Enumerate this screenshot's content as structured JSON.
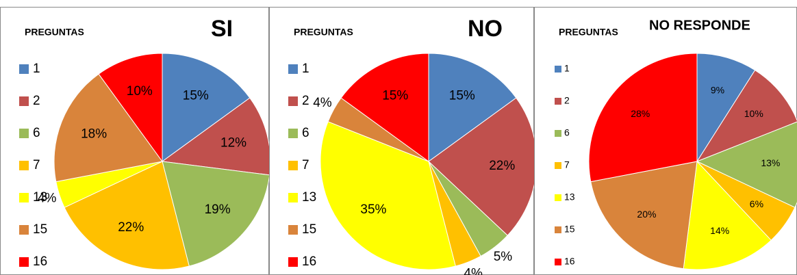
{
  "chart_data": [
    {
      "type": "pie",
      "title": "SI",
      "legend_title": "PREGUNTAS",
      "categories": [
        "1",
        "2",
        "6",
        "7",
        "13",
        "15",
        "16"
      ],
      "values": [
        15,
        12,
        19,
        22,
        4,
        18,
        10
      ],
      "value_labels": [
        "15%",
        "12%",
        "19%",
        "22%",
        "4%",
        "18%",
        "10%"
      ],
      "colors": [
        "#4f81bd",
        "#c0504d",
        "#9bbb59",
        "#ffc000",
        "#ffff00",
        "#d9843b",
        "#ff0000"
      ]
    },
    {
      "type": "pie",
      "title": "NO",
      "legend_title": "PREGUNTAS",
      "categories": [
        "1",
        "2",
        "6",
        "7",
        "13",
        "15",
        "16"
      ],
      "values": [
        15,
        22,
        5,
        4,
        35,
        4,
        15
      ],
      "value_labels": [
        "15%",
        "22%",
        "5%",
        "4%",
        "35%",
        "4%",
        "15%"
      ],
      "colors": [
        "#4f81bd",
        "#c0504d",
        "#9bbb59",
        "#ffc000",
        "#ffff00",
        "#d9843b",
        "#ff0000"
      ]
    },
    {
      "type": "pie",
      "title": "NO RESPONDE",
      "legend_title": "PREGUNTAS",
      "categories": [
        "1",
        "2",
        "6",
        "7",
        "13",
        "15",
        "16"
      ],
      "values": [
        9,
        10,
        13,
        6,
        14,
        20,
        28
      ],
      "value_labels": [
        "9%",
        "10%",
        "13%",
        "6%",
        "14%",
        "20%",
        "28%"
      ],
      "colors": [
        "#4f81bd",
        "#c0504d",
        "#9bbb59",
        "#ffc000",
        "#ffff00",
        "#d9843b",
        "#ff0000"
      ]
    }
  ]
}
